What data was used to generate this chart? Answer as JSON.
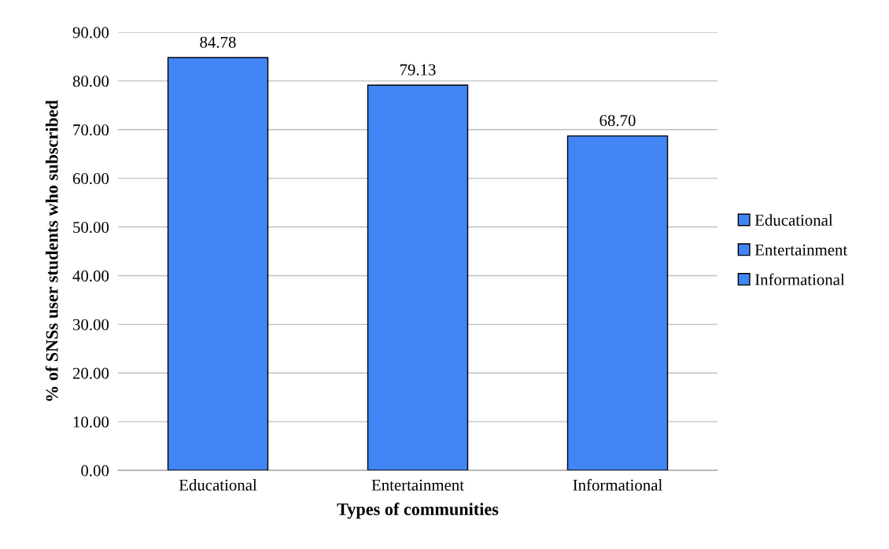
{
  "chart_data": {
    "type": "bar",
    "xlabel": "Types of communities",
    "ylabel": "% of SNSs user students who subscribed",
    "categories": [
      "Educational",
      "Entertainment",
      "Informational"
    ],
    "series": [
      {
        "name": "Educational",
        "color": "#4285f4",
        "values": [
          84.78,
          null,
          null
        ],
        "value_labels": [
          "84.78",
          null,
          null
        ]
      },
      {
        "name": "Entertainment",
        "color": "#4285f4",
        "values": [
          null,
          79.13,
          null
        ],
        "value_labels": [
          null,
          "79.13",
          null
        ]
      },
      {
        "name": "Informational",
        "color": "#4285f4",
        "values": [
          null,
          null,
          68.7
        ],
        "value_labels": [
          null,
          null,
          "68.70"
        ]
      }
    ],
    "ylim": [
      0,
      90
    ],
    "yticks": [
      {
        "value": 0,
        "label": "0.00"
      },
      {
        "value": 10,
        "label": "10.00"
      },
      {
        "value": 20,
        "label": "20.00"
      },
      {
        "value": 30,
        "label": "30.00"
      },
      {
        "value": 40,
        "label": "40.00"
      },
      {
        "value": 50,
        "label": "50.00"
      },
      {
        "value": 60,
        "label": "60.00"
      },
      {
        "value": 70,
        "label": "70.00"
      },
      {
        "value": 80,
        "label": "80.00"
      },
      {
        "value": 90,
        "label": "90.00"
      }
    ],
    "grid": "y",
    "legend": "right"
  }
}
